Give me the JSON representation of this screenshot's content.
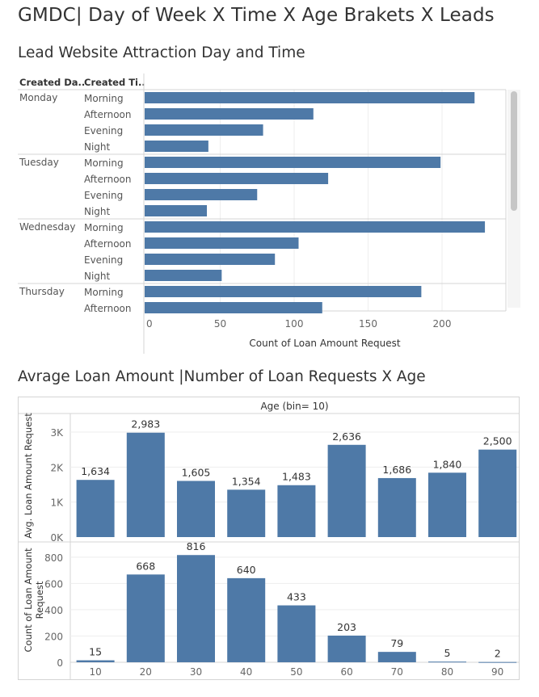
{
  "dashboard": {
    "title": "GMDC| Day of Week X Time X Age Brakets X Leads"
  },
  "chart1": {
    "title": "Lead Website Attraction Day and Time",
    "column_headers": [
      "Created Da..",
      "Created Ti.."
    ]
  },
  "chart2": {
    "title": "Avrage Loan Amount |Number of Loan Requests X Age"
  },
  "colors": {
    "bar": "#4e79a7",
    "grid": "#eeeeee",
    "divider": "#d4d4d4"
  },
  "chart_data": [
    {
      "type": "bar",
      "orientation": "horizontal",
      "title": "Lead Website Attraction Day and Time",
      "row_headers": [
        "Created Da..",
        "Created Ti.."
      ],
      "xlabel": "Count of Loan Amount Request",
      "xlim": [
        0,
        240
      ],
      "x_ticks": [
        0,
        50,
        100,
        150,
        200
      ],
      "grid": true,
      "groups": [
        {
          "day": "Monday",
          "items": [
            {
              "time": "Morning",
              "value": 222
            },
            {
              "time": "Afternoon",
              "value": 113
            },
            {
              "time": "Evening",
              "value": 79
            },
            {
              "time": "Night",
              "value": 42
            }
          ]
        },
        {
          "day": "Tuesday",
          "items": [
            {
              "time": "Morning",
              "value": 199
            },
            {
              "time": "Afternoon",
              "value": 123
            },
            {
              "time": "Evening",
              "value": 75
            },
            {
              "time": "Night",
              "value": 41
            }
          ]
        },
        {
          "day": "Wednesday",
          "items": [
            {
              "time": "Morning",
              "value": 229
            },
            {
              "time": "Afternoon",
              "value": 103
            },
            {
              "time": "Evening",
              "value": 87
            },
            {
              "time": "Night",
              "value": 51
            }
          ]
        },
        {
          "day": "Thursday",
          "items": [
            {
              "time": "Morning",
              "value": 186
            },
            {
              "time": "Afternoon",
              "value": 119
            }
          ]
        }
      ]
    },
    {
      "type": "bar",
      "title": "Avrage Loan Amount |Number of Loan Requests X Age",
      "header": "Age (bin= 10)",
      "categories": [
        "10",
        "20",
        "30",
        "40",
        "50",
        "60",
        "70",
        "80",
        "90"
      ],
      "panels": [
        {
          "ylabel": "Avg. Loan Amount Request",
          "ylim": [
            0,
            3300
          ],
          "y_ticks": [
            {
              "value": 0,
              "label": "0K"
            },
            {
              "value": 1000,
              "label": "1K"
            },
            {
              "value": 2000,
              "label": "2K"
            },
            {
              "value": 3000,
              "label": "3K"
            }
          ],
          "values": [
            1634,
            2983,
            1605,
            1354,
            1483,
            2636,
            1686,
            1840,
            2500
          ],
          "labels": [
            "1,634",
            "2,983",
            "1,605",
            "1,354",
            "1,483",
            "2,636",
            "1,686",
            "1,840",
            "2,500"
          ]
        },
        {
          "ylabel_lines": [
            "Count of Loan Amount",
            "Request"
          ],
          "ylim": [
            0,
            880
          ],
          "y_ticks": [
            {
              "value": 0,
              "label": "0"
            },
            {
              "value": 200,
              "label": "200"
            },
            {
              "value": 400,
              "label": "400"
            },
            {
              "value": 600,
              "label": "600"
            },
            {
              "value": 800,
              "label": "800"
            }
          ],
          "values": [
            15,
            668,
            816,
            640,
            433,
            203,
            79,
            5,
            2
          ],
          "labels": [
            "15",
            "668",
            "816",
            "640",
            "433",
            "203",
            "79",
            "5",
            "2"
          ]
        }
      ],
      "grid": true
    }
  ]
}
